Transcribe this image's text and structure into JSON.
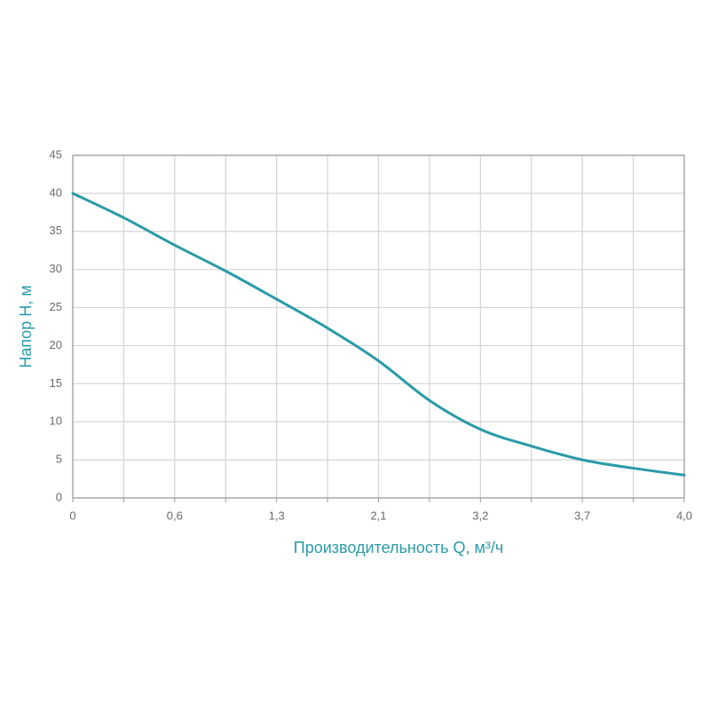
{
  "chart_data": {
    "type": "line",
    "xlabel": "Производительность Q, м³/ч",
    "ylabel": "Напор Н, м",
    "categories": [
      "0",
      null,
      "0,6",
      null,
      "1,3",
      null,
      "2,1",
      null,
      "3,2",
      null,
      "3,7",
      null,
      "4,0"
    ],
    "series": [
      {
        "color": "#2a9aa8",
        "values": [
          40,
          36.8,
          33.2,
          29.8,
          26.1,
          22.3,
          18.0,
          12.8,
          9.0,
          6.8,
          5.0,
          3.9,
          3.0
        ]
      }
    ],
    "ylim": [
      0,
      45
    ],
    "yticks": [
      0,
      5,
      10,
      15,
      20,
      25,
      30,
      35,
      40,
      45
    ],
    "grid": true
  }
}
